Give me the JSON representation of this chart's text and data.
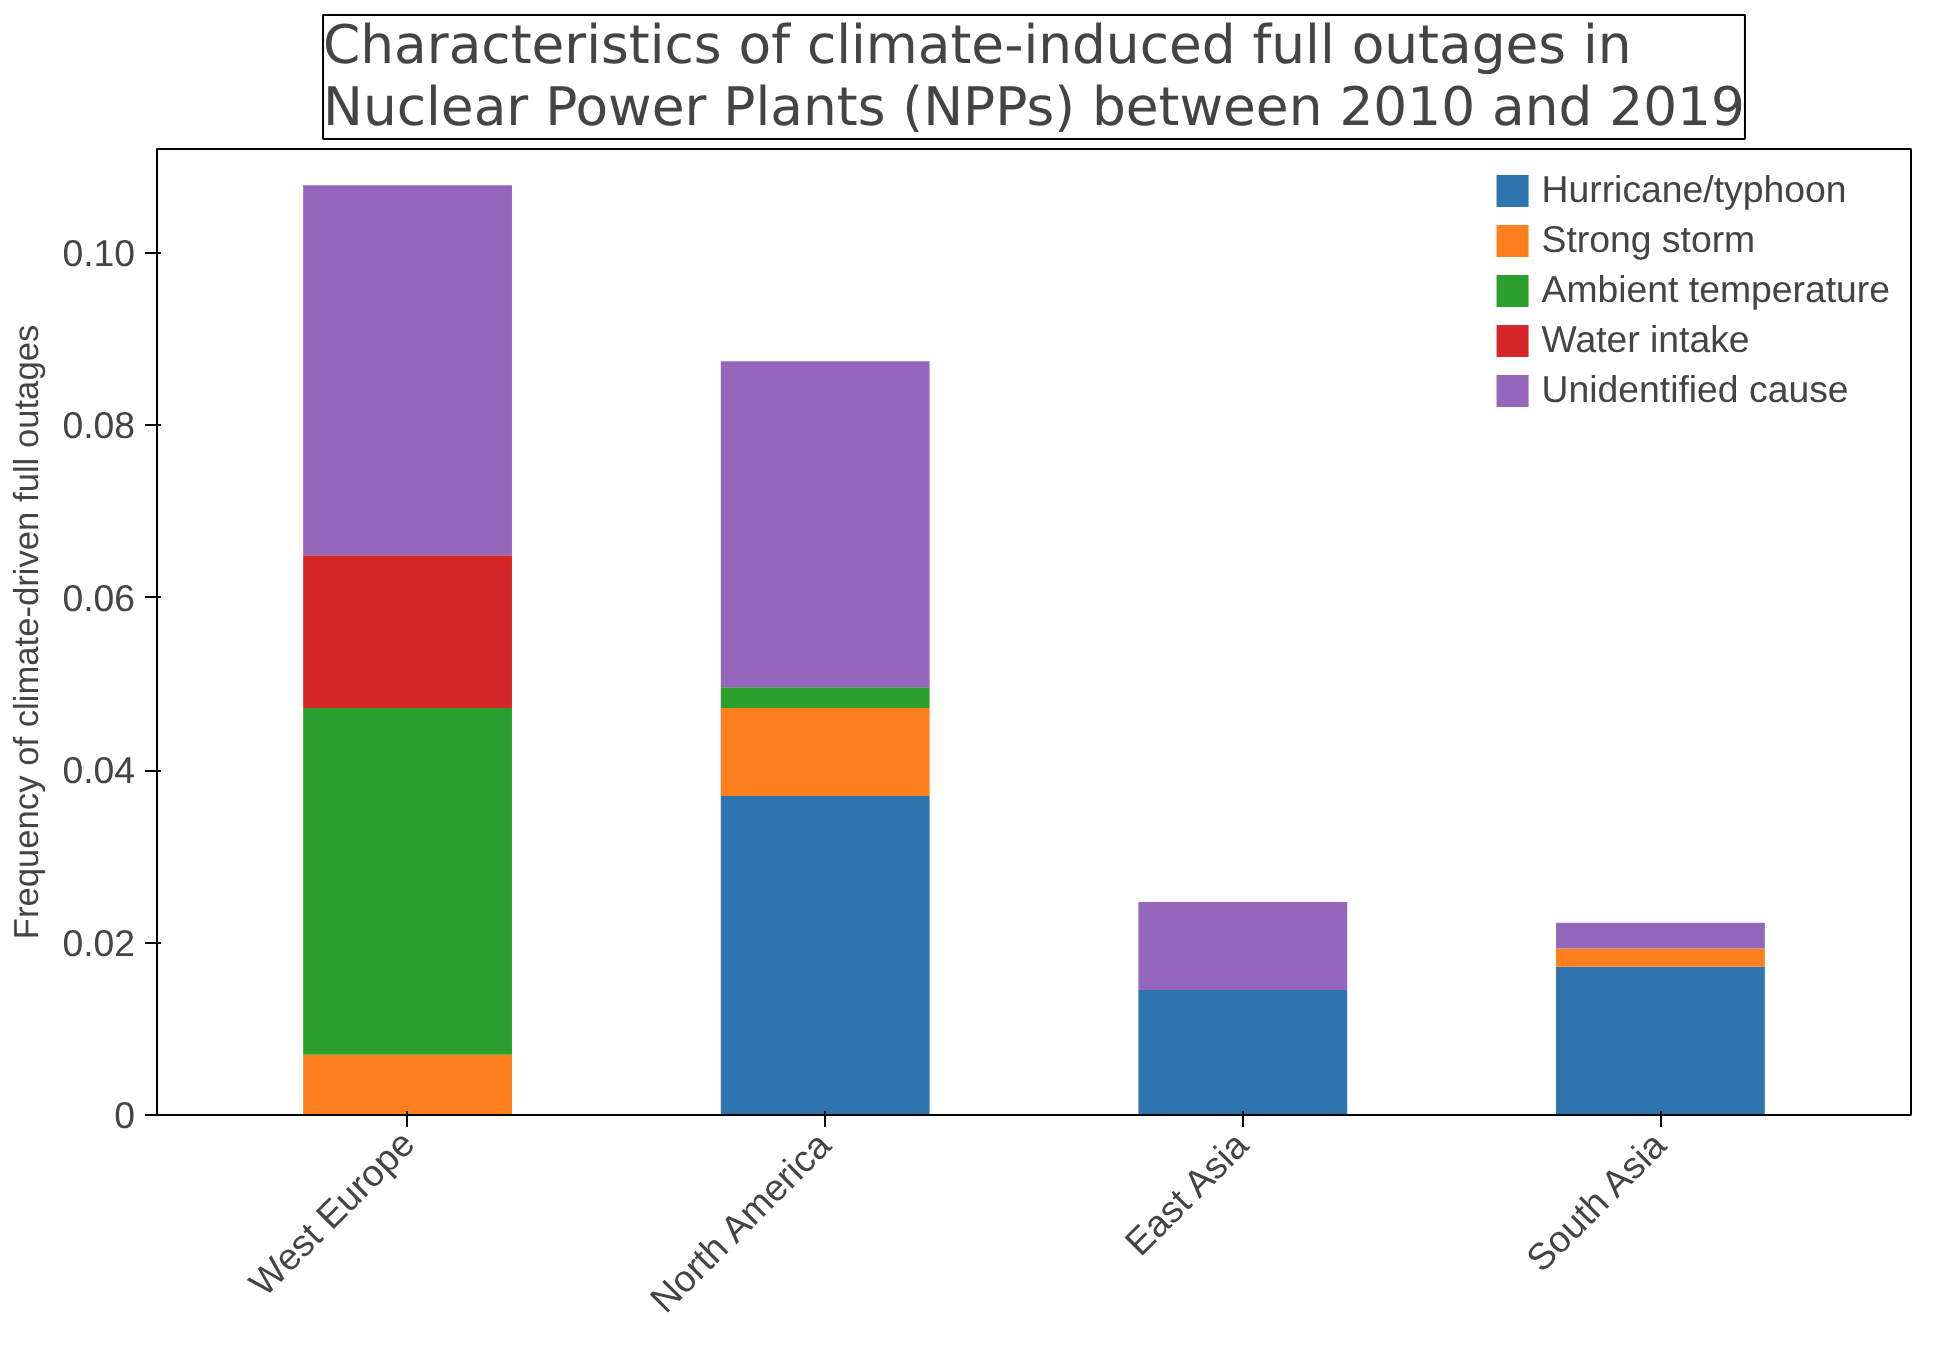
{
  "chart_data": {
    "type": "bar",
    "stacked": true,
    "title": "Characteristics of climate-induced full outages in\nNuclear Power Plants (NPPs) between 2010 and 2019",
    "ylabel": "Frequency of climate-driven full outages",
    "categories": [
      "West Europe",
      "North America",
      "East Asia",
      "South Asia"
    ],
    "series": [
      {
        "name": "Hurricane/typhoon",
        "color": "#2e75b0",
        "values": [
          0,
          0.037,
          0.0145,
          0.0172
        ]
      },
      {
        "name": "Strong storm",
        "color": "#fe7f1c",
        "values": [
          0.007,
          0.0102,
          0,
          0.0021
        ]
      },
      {
        "name": "Ambient temperature",
        "color": "#2ca02c",
        "values": [
          0.0402,
          0.0024,
          0,
          0
        ]
      },
      {
        "name": "Water intake",
        "color": "#d62728",
        "values": [
          0.0177,
          0,
          0,
          0
        ]
      },
      {
        "name": "Unidentified cause",
        "color": "#9467bd",
        "values": [
          0.0429,
          0.0378,
          0.0102,
          0.003
        ]
      }
    ],
    "ylim": [
      0,
      0.112
    ],
    "yticks": [
      0,
      0.02,
      0.04,
      0.06,
      0.08,
      {
        "value": 0.1,
        "label": "0.10"
      }
    ],
    "grid": false,
    "legend": "top right"
  }
}
